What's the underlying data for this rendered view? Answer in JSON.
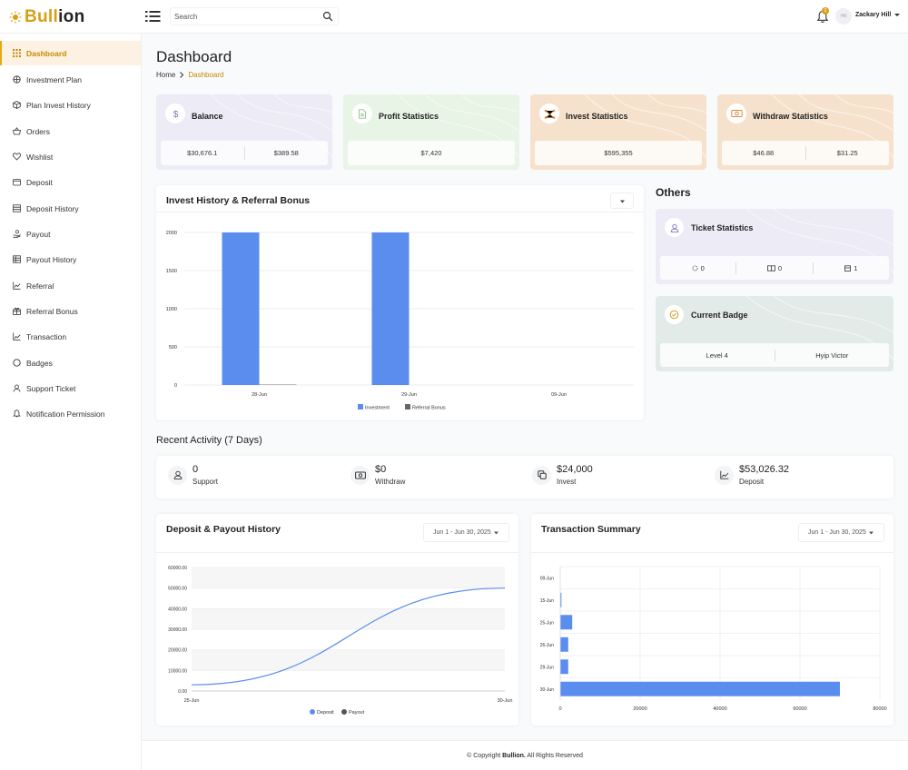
{
  "header": {
    "logo_prefix": "Bull",
    "logo_suffix": "ion",
    "search_placeholder": "Search",
    "notification_count": "0",
    "avatar_text": "Hill",
    "user_name": "Zackary Hill"
  },
  "sidebar": {
    "items": [
      {
        "label": "Dashboard",
        "icon": "grid-icon"
      },
      {
        "label": "Investment Plan",
        "icon": "box-stack-icon"
      },
      {
        "label": "Plan Invest History",
        "icon": "package-icon"
      },
      {
        "label": "Orders",
        "icon": "basket-icon"
      },
      {
        "label": "Wishlist",
        "icon": "heart-icon"
      },
      {
        "label": "Deposit",
        "icon": "wallet-icon"
      },
      {
        "label": "Deposit History",
        "icon": "list-icon"
      },
      {
        "label": "Payout",
        "icon": "hand-coin-icon"
      },
      {
        "label": "Payout History",
        "icon": "table-icon"
      },
      {
        "label": "Referral",
        "icon": "chart-line-icon"
      },
      {
        "label": "Referral Bonus",
        "icon": "gift-icon"
      },
      {
        "label": "Transaction",
        "icon": "trend-icon"
      },
      {
        "label": "Badges",
        "icon": "circle-icon"
      },
      {
        "label": "Support Ticket",
        "icon": "headset-icon"
      },
      {
        "label": "Notification Permission",
        "icon": "bell-icon"
      }
    ]
  },
  "page": {
    "title": "Dashboard",
    "breadcrumb_home": "Home",
    "breadcrumb_current": "Dashboard"
  },
  "stats": [
    {
      "title": "Balance",
      "values": [
        "$30,676.1",
        "$389.58"
      ],
      "bg": "#ecebf6",
      "icon": "dollar-icon",
      "icon_color": "#7b78b8"
    },
    {
      "title": "Profit Statistics",
      "values": [
        "$7,420"
      ],
      "bg": "#e8f4e5",
      "icon": "document-icon",
      "icon_color": "#8cc084"
    },
    {
      "title": "Invest Statistics",
      "values": [
        "$595,355"
      ],
      "bg": "#f6e2cc",
      "icon": "network-icon",
      "icon_color": "#d98d3c"
    },
    {
      "title": "Withdraw Statistics",
      "values": [
        "$46.88",
        "$31.25"
      ],
      "bg": "#f6e2cc",
      "icon": "cash-icon",
      "icon_color": "#d98d3c"
    }
  ],
  "invest_chart": {
    "title": "Invest History & Referral Bonus",
    "dropdown_label": ""
  },
  "others": {
    "title": "Others",
    "ticket": {
      "title": "Ticket Statistics",
      "values": [
        "0",
        "0",
        "1"
      ],
      "icons": [
        "spinner-icon",
        "ticket-open-icon",
        "inbox-icon"
      ]
    },
    "badge": {
      "title": "Current Badge",
      "values": [
        "Level 4",
        "Hyip Victor"
      ]
    }
  },
  "recent": {
    "title": "Recent Activity (7 Days)",
    "items": [
      {
        "value": "0",
        "label": "Support",
        "icon": "headset-icon"
      },
      {
        "value": "$0",
        "label": "Withdraw",
        "icon": "cash-icon"
      },
      {
        "value": "$24,000",
        "label": "Invest",
        "icon": "copy-icon"
      },
      {
        "value": "$53,026.32",
        "label": "Deposit",
        "icon": "trend-icon"
      }
    ]
  },
  "deposit_payout": {
    "title": "Deposit & Payout History",
    "date_range": "Jun 1 - Jun 30, 2025"
  },
  "transaction_summary": {
    "title": "Transaction Summary",
    "date_range": "Jun 1 - Jun 30, 2025"
  },
  "footer": {
    "prefix": "© Copyright",
    "brand": "Bullion.",
    "suffix": "All Rights Reserved"
  },
  "chart_data": [
    {
      "type": "bar",
      "categories": [
        "28-Jun",
        "29-Jun",
        "09-Jun"
      ],
      "series": [
        {
          "name": "Investment",
          "values": [
            2000,
            2000,
            0
          ],
          "color": "#5b8def"
        },
        {
          "name": "Referral Bonus",
          "values": [
            5,
            0,
            0
          ],
          "color": "#666666"
        }
      ],
      "y_ticks": [
        "0",
        "500",
        "1000",
        "1500",
        "2000"
      ],
      "ylim": [
        0,
        2000
      ],
      "grid": true,
      "legend": "bottom"
    },
    {
      "type": "area",
      "x": [
        "25-Jun",
        "30-Jun"
      ],
      "series": [
        {
          "name": "Deposit",
          "values": [
            3000,
            50000
          ],
          "color": "#5b8def"
        },
        {
          "name": "Payout",
          "values": [
            0,
            0
          ],
          "color": "#555555"
        }
      ],
      "y_ticks": [
        "0.00",
        "10000.00",
        "20000.00",
        "30000.00",
        "40000.00",
        "50000.00",
        "60000.00"
      ],
      "ylim": [
        0,
        60000
      ],
      "grid": true,
      "legend": "bottom"
    },
    {
      "type": "bar",
      "orientation": "horizontal",
      "categories": [
        "09-Jun",
        "15-Jun",
        "25-Jun",
        "26-Jun",
        "29-Jun",
        "30-Jun"
      ],
      "values": [
        0,
        300,
        3000,
        2000,
        2000,
        70000
      ],
      "color": "#5b8def",
      "x_ticks": [
        "0",
        "20000",
        "40000",
        "60000",
        "80000"
      ],
      "xlim": [
        0,
        80000
      ],
      "grid": true
    }
  ]
}
